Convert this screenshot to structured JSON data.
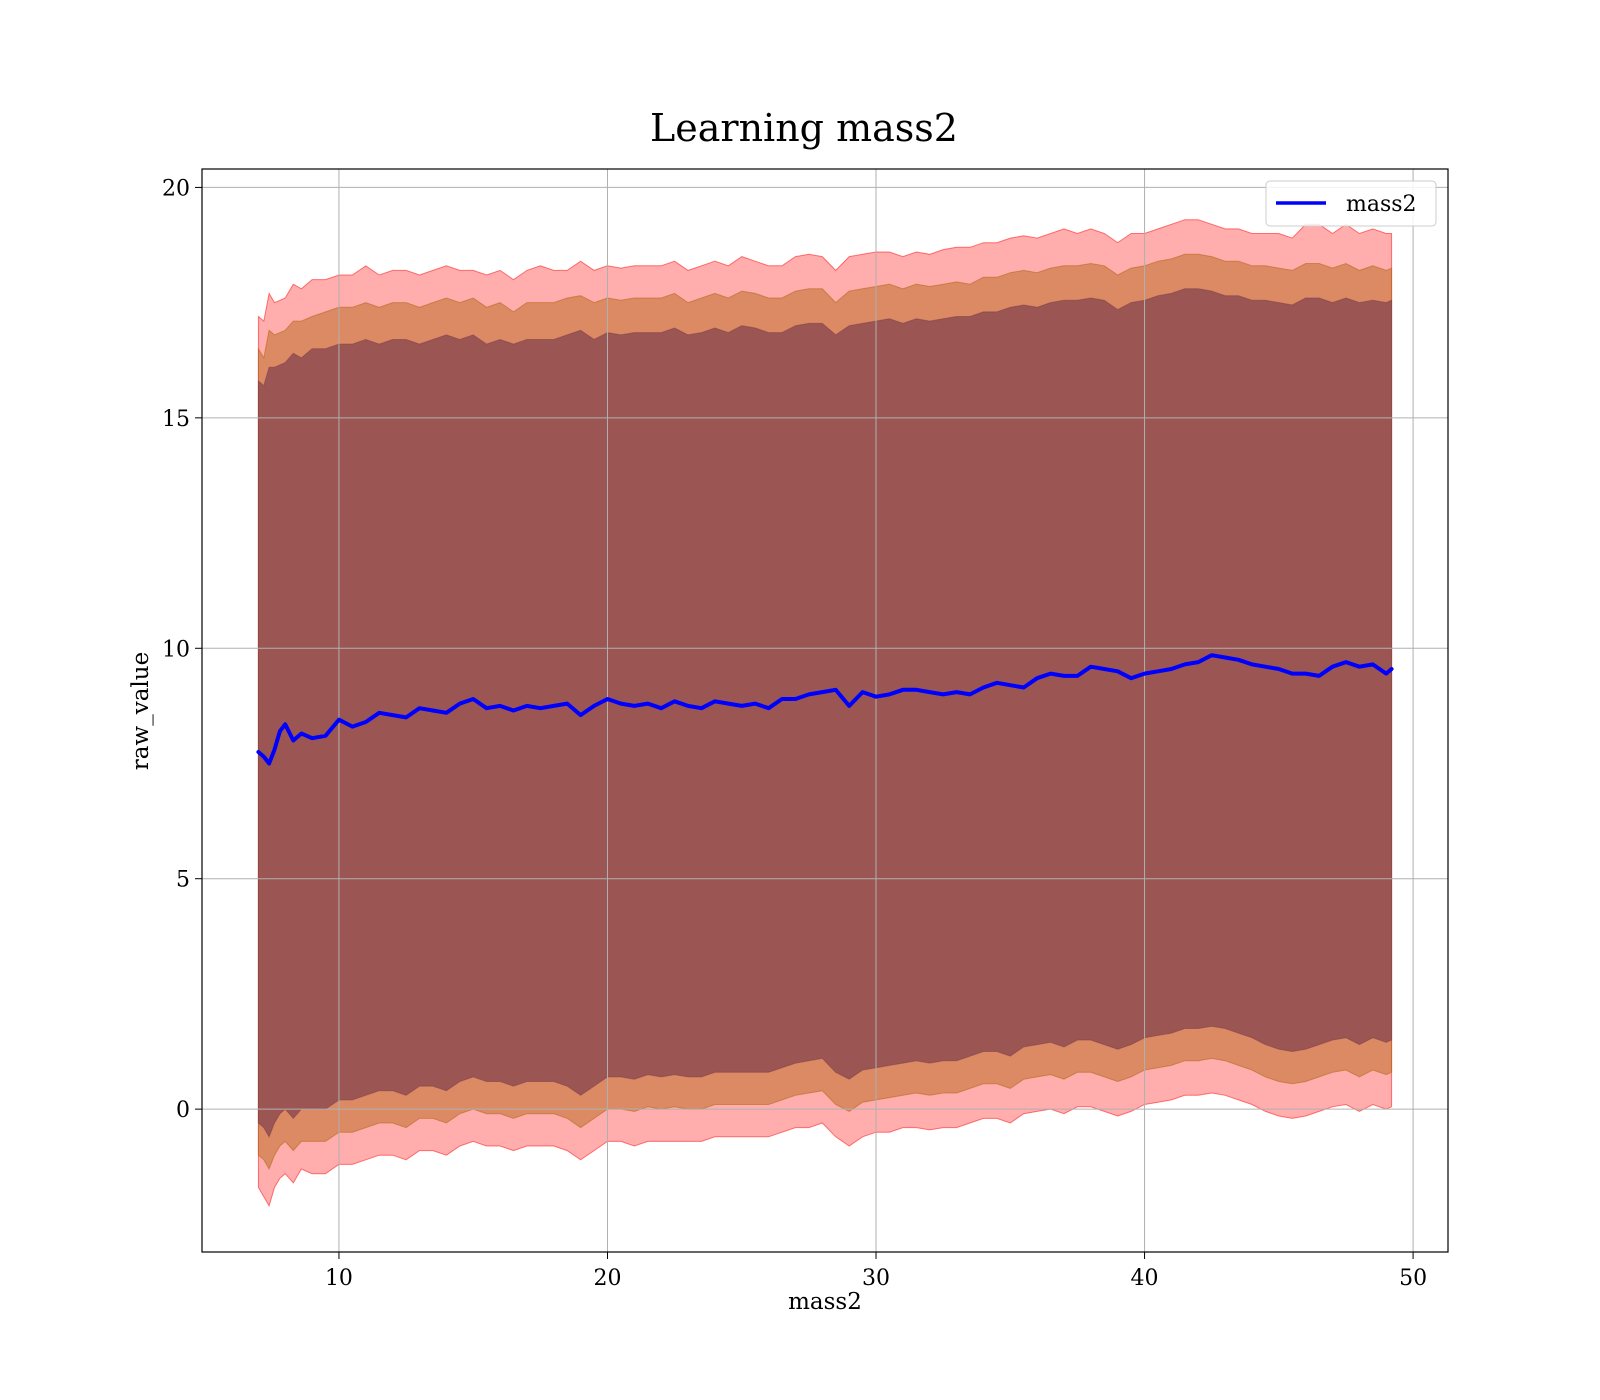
{
  "chart_data": {
    "type": "line",
    "title": "Learning mass2",
    "xlabel": "mass2",
    "ylabel": "raw_value",
    "xlim": [
      4.9,
      51.3
    ],
    "ylim": [
      -3.1,
      20.4
    ],
    "xticks": [
      10,
      20,
      30,
      40,
      50
    ],
    "yticks": [
      0,
      5,
      10,
      15,
      20
    ],
    "grid": true,
    "legend": {
      "position": "top-right",
      "entries": [
        "mass2"
      ]
    },
    "colors": {
      "line": "#0000ff",
      "band_outer": "#ff0000",
      "band_middle": "#b0600c",
      "band_inner": "#7a3a4a",
      "grid": "#b0b0b0"
    },
    "series": [
      {
        "name": "mass2",
        "style": "line",
        "x": [
          7.0,
          7.2,
          7.4,
          7.6,
          7.8,
          8.0,
          8.3,
          8.6,
          9.0,
          9.5,
          10.0,
          10.5,
          11.0,
          11.5,
          12.0,
          12.5,
          13.0,
          13.5,
          14.0,
          14.5,
          15.0,
          15.5,
          16.0,
          16.5,
          17.0,
          17.5,
          18.0,
          18.5,
          19.0,
          19.5,
          20.0,
          20.5,
          21.0,
          21.5,
          22.0,
          22.5,
          23.0,
          23.5,
          24.0,
          24.5,
          25.0,
          25.5,
          26.0,
          26.5,
          27.0,
          27.5,
          28.0,
          28.5,
          29.0,
          29.5,
          30.0,
          30.5,
          31.0,
          31.5,
          32.0,
          32.5,
          33.0,
          33.5,
          34.0,
          34.5,
          35.0,
          35.5,
          36.0,
          36.5,
          37.0,
          37.5,
          38.0,
          38.5,
          39.0,
          39.5,
          40.0,
          40.5,
          41.0,
          41.5,
          42.0,
          42.5,
          43.0,
          43.5,
          44.0,
          44.5,
          45.0,
          45.5,
          46.0,
          46.5,
          47.0,
          47.5,
          48.0,
          48.5,
          49.0,
          49.2
        ],
        "y": [
          7.75,
          7.65,
          7.5,
          7.8,
          8.2,
          8.35,
          8.0,
          8.15,
          8.05,
          8.1,
          8.45,
          8.3,
          8.4,
          8.6,
          8.55,
          8.5,
          8.7,
          8.65,
          8.6,
          8.8,
          8.9,
          8.7,
          8.75,
          8.65,
          8.75,
          8.7,
          8.75,
          8.8,
          8.55,
          8.75,
          8.9,
          8.8,
          8.75,
          8.8,
          8.7,
          8.85,
          8.75,
          8.7,
          8.85,
          8.8,
          8.75,
          8.8,
          8.7,
          8.9,
          8.9,
          9.0,
          9.05,
          9.1,
          8.75,
          9.05,
          8.95,
          9.0,
          9.1,
          9.1,
          9.05,
          9.0,
          9.05,
          9.0,
          9.15,
          9.25,
          9.2,
          9.15,
          9.35,
          9.45,
          9.4,
          9.4,
          9.6,
          9.55,
          9.5,
          9.35,
          9.45,
          9.5,
          9.55,
          9.65,
          9.7,
          9.85,
          9.8,
          9.75,
          9.65,
          9.6,
          9.55,
          9.45,
          9.45,
          9.4,
          9.6,
          9.7,
          9.6,
          9.65,
          9.45,
          9.55
        ]
      },
      {
        "name": "",
        "style": "band",
        "level": "outer",
        "upper": [
          17.2,
          17.1,
          17.7,
          17.5,
          17.55,
          17.6,
          17.9,
          17.8,
          18.0,
          18.0,
          18.1,
          18.1,
          18.3,
          18.1,
          18.2,
          18.2,
          18.1,
          18.2,
          18.3,
          18.2,
          18.2,
          18.1,
          18.2,
          18.0,
          18.2,
          18.3,
          18.2,
          18.2,
          18.4,
          18.2,
          18.3,
          18.25,
          18.3,
          18.3,
          18.3,
          18.4,
          18.2,
          18.3,
          18.4,
          18.3,
          18.5,
          18.4,
          18.3,
          18.3,
          18.5,
          18.55,
          18.5,
          18.2,
          18.5,
          18.55,
          18.6,
          18.6,
          18.5,
          18.6,
          18.55,
          18.65,
          18.7,
          18.7,
          18.8,
          18.8,
          18.9,
          18.95,
          18.9,
          19.0,
          19.1,
          19.0,
          19.1,
          19.0,
          18.8,
          19.0,
          19.0,
          19.1,
          19.2,
          19.3,
          19.3,
          19.2,
          19.1,
          19.1,
          19.0,
          19.0,
          19.0,
          18.9,
          19.2,
          19.2,
          19.0,
          19.2,
          19.0,
          19.1,
          19.0,
          19.0
        ],
        "lower": [
          -1.7,
          -1.9,
          -2.1,
          -1.7,
          -1.5,
          -1.4,
          -1.6,
          -1.3,
          -1.4,
          -1.4,
          -1.2,
          -1.2,
          -1.1,
          -1.0,
          -1.0,
          -1.1,
          -0.9,
          -0.9,
          -1.0,
          -0.8,
          -0.7,
          -0.8,
          -0.8,
          -0.9,
          -0.8,
          -0.8,
          -0.8,
          -0.9,
          -1.1,
          -0.9,
          -0.7,
          -0.7,
          -0.8,
          -0.7,
          -0.7,
          -0.7,
          -0.7,
          -0.7,
          -0.6,
          -0.6,
          -0.6,
          -0.6,
          -0.6,
          -0.5,
          -0.4,
          -0.4,
          -0.3,
          -0.6,
          -0.8,
          -0.6,
          -0.5,
          -0.5,
          -0.4,
          -0.4,
          -0.45,
          -0.4,
          -0.4,
          -0.3,
          -0.2,
          -0.2,
          -0.3,
          -0.1,
          -0.05,
          0.0,
          -0.1,
          0.05,
          0.05,
          -0.05,
          -0.15,
          -0.05,
          0.1,
          0.15,
          0.2,
          0.3,
          0.3,
          0.35,
          0.3,
          0.2,
          0.1,
          -0.05,
          -0.15,
          -0.2,
          -0.15,
          -0.05,
          0.05,
          0.1,
          -0.05,
          0.1,
          0.0,
          0.05
        ]
      },
      {
        "name": "",
        "style": "band",
        "level": "middle",
        "upper": [
          16.5,
          16.3,
          16.9,
          16.8,
          16.85,
          16.9,
          17.1,
          17.1,
          17.2,
          17.3,
          17.4,
          17.4,
          17.5,
          17.4,
          17.5,
          17.5,
          17.4,
          17.5,
          17.6,
          17.5,
          17.6,
          17.4,
          17.5,
          17.3,
          17.5,
          17.5,
          17.5,
          17.6,
          17.65,
          17.5,
          17.6,
          17.55,
          17.6,
          17.6,
          17.6,
          17.7,
          17.5,
          17.6,
          17.7,
          17.6,
          17.75,
          17.7,
          17.6,
          17.6,
          17.75,
          17.8,
          17.8,
          17.5,
          17.75,
          17.8,
          17.85,
          17.9,
          17.8,
          17.9,
          17.85,
          17.9,
          17.95,
          17.9,
          18.05,
          18.05,
          18.15,
          18.2,
          18.15,
          18.25,
          18.3,
          18.3,
          18.35,
          18.3,
          18.1,
          18.25,
          18.3,
          18.4,
          18.45,
          18.55,
          18.55,
          18.5,
          18.4,
          18.4,
          18.3,
          18.3,
          18.25,
          18.2,
          18.35,
          18.35,
          18.25,
          18.35,
          18.2,
          18.3,
          18.2,
          18.25
        ],
        "lower": [
          -1.0,
          -1.1,
          -1.3,
          -1.0,
          -0.8,
          -0.7,
          -0.9,
          -0.7,
          -0.7,
          -0.7,
          -0.5,
          -0.5,
          -0.4,
          -0.3,
          -0.3,
          -0.4,
          -0.2,
          -0.2,
          -0.3,
          -0.1,
          0.0,
          -0.1,
          -0.1,
          -0.2,
          -0.1,
          -0.1,
          -0.1,
          -0.2,
          -0.4,
          -0.2,
          0.0,
          0.0,
          -0.05,
          0.05,
          0.0,
          0.05,
          0.0,
          0.0,
          0.1,
          0.1,
          0.1,
          0.1,
          0.1,
          0.2,
          0.3,
          0.35,
          0.4,
          0.1,
          -0.05,
          0.15,
          0.2,
          0.25,
          0.3,
          0.35,
          0.3,
          0.35,
          0.35,
          0.45,
          0.55,
          0.55,
          0.45,
          0.65,
          0.7,
          0.75,
          0.65,
          0.8,
          0.8,
          0.7,
          0.6,
          0.7,
          0.85,
          0.9,
          0.95,
          1.05,
          1.05,
          1.1,
          1.05,
          0.95,
          0.85,
          0.7,
          0.6,
          0.55,
          0.6,
          0.7,
          0.8,
          0.85,
          0.7,
          0.85,
          0.75,
          0.8
        ]
      },
      {
        "name": "",
        "style": "band",
        "level": "inner",
        "upper": [
          15.8,
          15.7,
          16.1,
          16.1,
          16.15,
          16.2,
          16.4,
          16.3,
          16.5,
          16.5,
          16.6,
          16.6,
          16.7,
          16.6,
          16.7,
          16.7,
          16.6,
          16.7,
          16.8,
          16.7,
          16.8,
          16.6,
          16.7,
          16.6,
          16.7,
          16.7,
          16.7,
          16.8,
          16.9,
          16.7,
          16.85,
          16.8,
          16.85,
          16.85,
          16.85,
          16.95,
          16.8,
          16.85,
          16.95,
          16.85,
          17.0,
          16.95,
          16.85,
          16.85,
          17.0,
          17.05,
          17.05,
          16.8,
          17.0,
          17.05,
          17.1,
          17.15,
          17.05,
          17.15,
          17.1,
          17.15,
          17.2,
          17.2,
          17.3,
          17.3,
          17.4,
          17.45,
          17.4,
          17.5,
          17.55,
          17.55,
          17.6,
          17.55,
          17.35,
          17.5,
          17.55,
          17.65,
          17.7,
          17.8,
          17.8,
          17.75,
          17.65,
          17.65,
          17.55,
          17.55,
          17.5,
          17.45,
          17.6,
          17.6,
          17.5,
          17.6,
          17.5,
          17.55,
          17.5,
          17.55
        ],
        "lower": [
          -0.3,
          -0.4,
          -0.6,
          -0.3,
          -0.1,
          0.0,
          -0.2,
          0.0,
          0.0,
          0.0,
          0.2,
          0.2,
          0.3,
          0.4,
          0.4,
          0.3,
          0.5,
          0.5,
          0.4,
          0.6,
          0.7,
          0.6,
          0.6,
          0.5,
          0.6,
          0.6,
          0.6,
          0.5,
          0.3,
          0.5,
          0.7,
          0.7,
          0.65,
          0.75,
          0.7,
          0.75,
          0.7,
          0.7,
          0.8,
          0.8,
          0.8,
          0.8,
          0.8,
          0.9,
          1.0,
          1.05,
          1.1,
          0.8,
          0.65,
          0.85,
          0.9,
          0.95,
          1.0,
          1.05,
          1.0,
          1.05,
          1.05,
          1.15,
          1.25,
          1.25,
          1.15,
          1.35,
          1.4,
          1.45,
          1.35,
          1.5,
          1.5,
          1.4,
          1.3,
          1.4,
          1.55,
          1.6,
          1.65,
          1.75,
          1.75,
          1.8,
          1.75,
          1.65,
          1.55,
          1.4,
          1.3,
          1.25,
          1.3,
          1.4,
          1.5,
          1.55,
          1.4,
          1.55,
          1.45,
          1.5
        ]
      }
    ]
  }
}
